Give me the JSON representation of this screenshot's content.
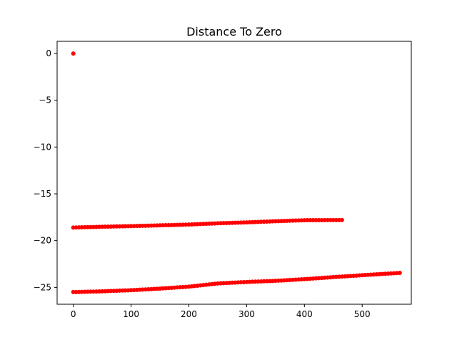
{
  "chart_data": {
    "type": "scatter",
    "title": "Distance To Zero",
    "xlabel": "",
    "ylabel": "",
    "xlim": [
      -28,
      585
    ],
    "ylim": [
      -26.8,
      1.3
    ],
    "x_ticks": [
      0,
      100,
      200,
      300,
      400,
      500
    ],
    "y_ticks": [
      0,
      -5,
      -10,
      -15,
      -20,
      -25
    ],
    "grid": false,
    "marker_color": "#ff0000",
    "series": [
      {
        "points": [
          [
            0,
            0
          ]
        ]
      },
      {
        "step": 5,
        "points": [
          [
            0,
            -18.6
          ],
          [
            50,
            -18.52
          ],
          [
            100,
            -18.45
          ],
          [
            150,
            -18.37
          ],
          [
            200,
            -18.28
          ],
          [
            250,
            -18.15
          ],
          [
            300,
            -18.05
          ],
          [
            350,
            -17.93
          ],
          [
            400,
            -17.82
          ],
          [
            465,
            -17.8
          ]
        ]
      },
      {
        "step": 5,
        "points": [
          [
            0,
            -25.5
          ],
          [
            50,
            -25.42
          ],
          [
            100,
            -25.3
          ],
          [
            150,
            -25.13
          ],
          [
            200,
            -24.92
          ],
          [
            250,
            -24.58
          ],
          [
            300,
            -24.42
          ],
          [
            350,
            -24.3
          ],
          [
            400,
            -24.12
          ],
          [
            450,
            -23.9
          ],
          [
            500,
            -23.7
          ],
          [
            565,
            -23.45
          ]
        ]
      }
    ]
  }
}
